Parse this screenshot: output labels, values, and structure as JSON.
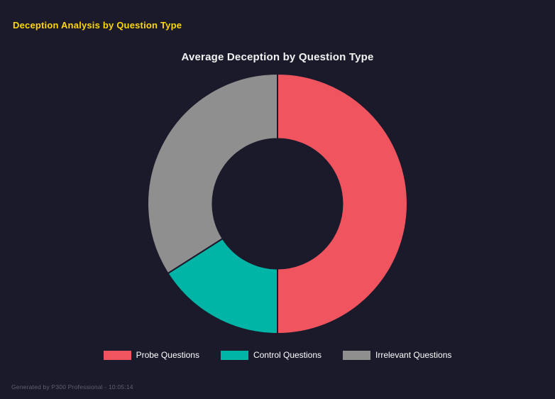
{
  "page": {
    "header": "Deception Analysis by Question Type",
    "footer": "Generated by P300 Professional - 10:05:14"
  },
  "chart_data": {
    "type": "pie",
    "variant": "donut",
    "title": "Average Deception by Question Type",
    "categories": [
      "Probe Questions",
      "Control Questions",
      "Irrelevant Questions"
    ],
    "values": [
      50,
      16,
      34
    ],
    "colors": [
      "#f0545f",
      "#00b5a6",
      "#8f8f8f"
    ],
    "legend_position": "bottom",
    "legend_entries": [
      "Probe Questions",
      "Control Questions",
      "Irrelevant Questions"
    ],
    "cutout_percent": 50,
    "start_angle_deg": 0,
    "rotation": "clockwise-from-top"
  },
  "theme": {
    "background": "#1a1a2b",
    "header_color": "#ffd700",
    "title_color": "#f2f2f2",
    "legend_text_color": "#ffffff",
    "footer_color": "#5f5f72",
    "segment_border_color": "#1a1a2b"
  }
}
